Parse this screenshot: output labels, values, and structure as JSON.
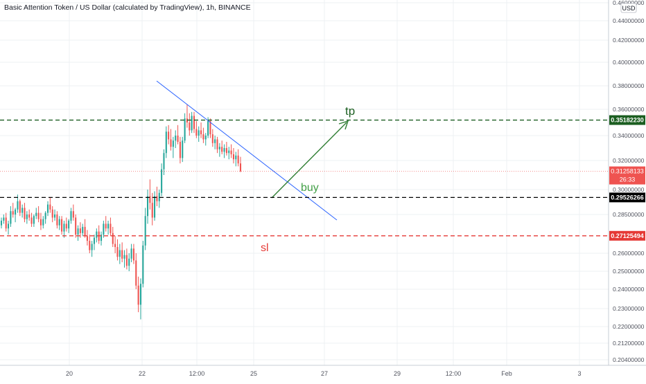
{
  "header": {
    "symbol_title": "Basic Attention Token / US Dollar (calculated by TradingView), 1h, BINANCE"
  },
  "currency": "USD",
  "colors": {
    "up": "#26a69a",
    "down": "#ef5350",
    "trendline": "#2962ff",
    "arrow": "#2e7d32",
    "tp_line": "#1b5e20",
    "entry_line": "#000000",
    "sl_line": "#e53935",
    "last_price": "#ef5350",
    "grid": "#eef0f3"
  },
  "chart_data": {
    "type": "candlestick",
    "symbol": "BATUSD",
    "interval": "1h",
    "exchange": "BINANCE",
    "y_axis": {
      "ticks": [
        "0.20400000",
        "0.21200000",
        "0.22000000",
        "0.23000000",
        "0.24000000",
        "0.25000000",
        "0.26000000",
        "0.28500000",
        "0.30000000",
        "0.32000000",
        "0.34000000",
        "0.36000000",
        "0.38000000",
        "0.40000000",
        "0.42000000",
        "0.44000000",
        "0.46000000"
      ],
      "range": [
        0.2,
        0.465
      ]
    },
    "x_axis": {
      "ticks": [
        "20",
        "22",
        "12:00",
        "25",
        "27",
        "29",
        "12:00",
        "Feb",
        "3"
      ]
    },
    "price_labels": {
      "tp": "0.35182230",
      "last": "0.31258133",
      "countdown": "26:33",
      "entry": "0.29526266",
      "sl": "0.27125494"
    },
    "levels": {
      "tp": 0.3518223,
      "entry": 0.29526266,
      "sl": 0.27125494,
      "last": 0.31258133
    },
    "annotations": {
      "tp": "tp",
      "buy": "buy",
      "sl": "sl"
    },
    "candles": [
      [
        0.278,
        0.283,
        0.276,
        0.281
      ],
      [
        0.281,
        0.285,
        0.279,
        0.283
      ],
      [
        0.283,
        0.286,
        0.274,
        0.276
      ],
      [
        0.276,
        0.281,
        0.272,
        0.279
      ],
      [
        0.279,
        0.29,
        0.277,
        0.287
      ],
      [
        0.287,
        0.292,
        0.283,
        0.285
      ],
      [
        0.285,
        0.289,
        0.28,
        0.288
      ],
      [
        0.288,
        0.297,
        0.286,
        0.293
      ],
      [
        0.293,
        0.294,
        0.284,
        0.286
      ],
      [
        0.286,
        0.291,
        0.283,
        0.289
      ],
      [
        0.289,
        0.292,
        0.28,
        0.282
      ],
      [
        0.282,
        0.287,
        0.279,
        0.285
      ],
      [
        0.285,
        0.288,
        0.281,
        0.283
      ],
      [
        0.283,
        0.286,
        0.277,
        0.279
      ],
      [
        0.279,
        0.285,
        0.277,
        0.284
      ],
      [
        0.284,
        0.289,
        0.282,
        0.286
      ],
      [
        0.286,
        0.29,
        0.28,
        0.282
      ],
      [
        0.282,
        0.286,
        0.275,
        0.278
      ],
      [
        0.278,
        0.284,
        0.276,
        0.282
      ],
      [
        0.282,
        0.287,
        0.279,
        0.286
      ],
      [
        0.286,
        0.293,
        0.284,
        0.291
      ],
      [
        0.291,
        0.295,
        0.286,
        0.288
      ],
      [
        0.288,
        0.29,
        0.28,
        0.283
      ],
      [
        0.283,
        0.288,
        0.281,
        0.285
      ],
      [
        0.285,
        0.287,
        0.276,
        0.278
      ],
      [
        0.278,
        0.284,
        0.275,
        0.282
      ],
      [
        0.282,
        0.284,
        0.272,
        0.274
      ],
      [
        0.274,
        0.281,
        0.27,
        0.279
      ],
      [
        0.279,
        0.283,
        0.274,
        0.276
      ],
      [
        0.276,
        0.282,
        0.273,
        0.281
      ],
      [
        0.281,
        0.289,
        0.279,
        0.287
      ],
      [
        0.287,
        0.291,
        0.281,
        0.283
      ],
      [
        0.283,
        0.285,
        0.27,
        0.272
      ],
      [
        0.272,
        0.278,
        0.268,
        0.276
      ],
      [
        0.276,
        0.28,
        0.27,
        0.273
      ],
      [
        0.273,
        0.279,
        0.271,
        0.277
      ],
      [
        0.277,
        0.282,
        0.27,
        0.271
      ],
      [
        0.271,
        0.275,
        0.265,
        0.268
      ],
      [
        0.268,
        0.272,
        0.26,
        0.262
      ],
      [
        0.262,
        0.268,
        0.258,
        0.266
      ],
      [
        0.266,
        0.272,
        0.262,
        0.27
      ],
      [
        0.27,
        0.276,
        0.267,
        0.274
      ],
      [
        0.274,
        0.278,
        0.266,
        0.268
      ],
      [
        0.268,
        0.274,
        0.265,
        0.272
      ],
      [
        0.272,
        0.281,
        0.27,
        0.279
      ],
      [
        0.279,
        0.284,
        0.274,
        0.276
      ],
      [
        0.276,
        0.281,
        0.272,
        0.279
      ],
      [
        0.279,
        0.283,
        0.271,
        0.273
      ],
      [
        0.273,
        0.277,
        0.264,
        0.266
      ],
      [
        0.266,
        0.271,
        0.26,
        0.264
      ],
      [
        0.264,
        0.269,
        0.256,
        0.258
      ],
      [
        0.258,
        0.266,
        0.254,
        0.262
      ],
      [
        0.262,
        0.267,
        0.255,
        0.257
      ],
      [
        0.257,
        0.262,
        0.252,
        0.259
      ],
      [
        0.259,
        0.263,
        0.251,
        0.253
      ],
      [
        0.253,
        0.26,
        0.25,
        0.257
      ],
      [
        0.257,
        0.266,
        0.255,
        0.263
      ],
      [
        0.263,
        0.266,
        0.254,
        0.256
      ],
      [
        0.256,
        0.26,
        0.24,
        0.242
      ],
      [
        0.242,
        0.247,
        0.228,
        0.232
      ],
      [
        0.232,
        0.246,
        0.224,
        0.243
      ],
      [
        0.243,
        0.268,
        0.241,
        0.265
      ],
      [
        0.265,
        0.289,
        0.262,
        0.284
      ],
      [
        0.284,
        0.3,
        0.279,
        0.296
      ],
      [
        0.296,
        0.307,
        0.288,
        0.292
      ],
      [
        0.292,
        0.298,
        0.278,
        0.283
      ],
      [
        0.283,
        0.299,
        0.281,
        0.296
      ],
      [
        0.296,
        0.302,
        0.29,
        0.293
      ],
      [
        0.293,
        0.3,
        0.289,
        0.298
      ],
      [
        0.298,
        0.318,
        0.296,
        0.314
      ],
      [
        0.314,
        0.329,
        0.31,
        0.326
      ],
      [
        0.326,
        0.347,
        0.322,
        0.343
      ],
      [
        0.343,
        0.348,
        0.333,
        0.337
      ],
      [
        0.337,
        0.345,
        0.328,
        0.331
      ],
      [
        0.331,
        0.339,
        0.322,
        0.336
      ],
      [
        0.336,
        0.344,
        0.33,
        0.34
      ],
      [
        0.34,
        0.348,
        0.333,
        0.335
      ],
      [
        0.335,
        0.339,
        0.318,
        0.322
      ],
      [
        0.322,
        0.339,
        0.319,
        0.336
      ],
      [
        0.336,
        0.357,
        0.334,
        0.353
      ],
      [
        0.353,
        0.364,
        0.346,
        0.35
      ],
      [
        0.35,
        0.357,
        0.34,
        0.344
      ],
      [
        0.344,
        0.358,
        0.342,
        0.355
      ],
      [
        0.355,
        0.358,
        0.342,
        0.345
      ],
      [
        0.345,
        0.351,
        0.338,
        0.34
      ],
      [
        0.34,
        0.347,
        0.335,
        0.344
      ],
      [
        0.344,
        0.35,
        0.338,
        0.341
      ],
      [
        0.341,
        0.346,
        0.334,
        0.337
      ],
      [
        0.337,
        0.342,
        0.332,
        0.34
      ],
      [
        0.34,
        0.354,
        0.338,
        0.351
      ],
      [
        0.351,
        0.353,
        0.338,
        0.341
      ],
      [
        0.341,
        0.345,
        0.331,
        0.334
      ],
      [
        0.334,
        0.34,
        0.329,
        0.337
      ],
      [
        0.337,
        0.339,
        0.326,
        0.329
      ],
      [
        0.329,
        0.334,
        0.323,
        0.331
      ],
      [
        0.331,
        0.336,
        0.325,
        0.327
      ],
      [
        0.327,
        0.333,
        0.322,
        0.33
      ],
      [
        0.33,
        0.335,
        0.324,
        0.326
      ],
      [
        0.326,
        0.331,
        0.321,
        0.328
      ],
      [
        0.328,
        0.333,
        0.322,
        0.325
      ],
      [
        0.325,
        0.33,
        0.318,
        0.321
      ],
      [
        0.321,
        0.327,
        0.316,
        0.324
      ],
      [
        0.324,
        0.329,
        0.316,
        0.318
      ],
      [
        0.318,
        0.323,
        0.312,
        0.3126
      ]
    ]
  }
}
